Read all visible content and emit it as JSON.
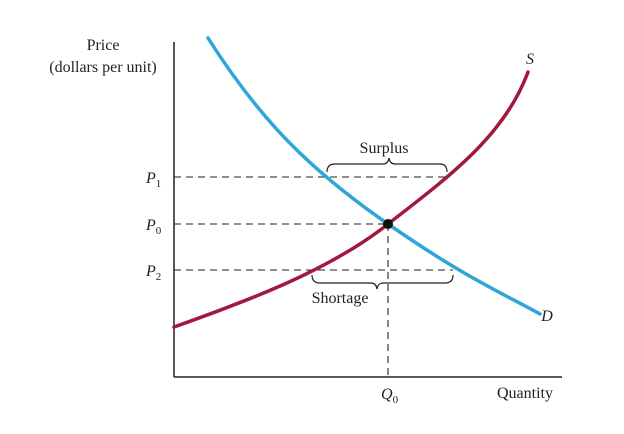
{
  "diagram": {
    "y_axis_label_line1": "Price",
    "y_axis_label_line2": "(dollars per unit)",
    "x_axis_label": "Quantity",
    "supply_label": "S",
    "demand_label": "D",
    "surplus_label": "Surplus",
    "shortage_label": "Shortage",
    "price_ticks": [
      {
        "base": "P",
        "sub": "1"
      },
      {
        "base": "P",
        "sub": "0"
      },
      {
        "base": "P",
        "sub": "2"
      }
    ],
    "quantity_tick": {
      "base": "Q",
      "sub": "0"
    },
    "colors": {
      "supply": "#a3193e",
      "demand": "#2ea6d8",
      "axis": "#222222",
      "guide": "#222222"
    }
  }
}
